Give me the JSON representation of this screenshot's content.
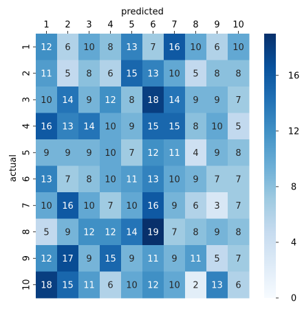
{
  "chart_data": {
    "type": "heatmap",
    "title": "",
    "xlabel": "predicted",
    "ylabel": "actual",
    "x_categories": [
      "1",
      "2",
      "3",
      "4",
      "5",
      "6",
      "7",
      "8",
      "9",
      "10"
    ],
    "y_categories": [
      "1",
      "2",
      "3",
      "4",
      "5",
      "6",
      "7",
      "8",
      "9",
      "10"
    ],
    "values": [
      [
        12,
        6,
        10,
        8,
        13,
        7,
        16,
        10,
        6,
        10
      ],
      [
        11,
        5,
        8,
        6,
        15,
        13,
        10,
        5,
        8,
        8
      ],
      [
        10,
        14,
        9,
        12,
        8,
        18,
        14,
        9,
        9,
        7
      ],
      [
        16,
        13,
        14,
        10,
        9,
        15,
        15,
        8,
        10,
        5
      ],
      [
        9,
        9,
        9,
        10,
        7,
        12,
        11,
        4,
        9,
        8
      ],
      [
        13,
        7,
        8,
        10,
        11,
        13,
        10,
        9,
        7,
        7
      ],
      [
        10,
        16,
        10,
        7,
        10,
        16,
        9,
        6,
        3,
        7
      ],
      [
        5,
        9,
        12,
        12,
        14,
        19,
        7,
        8,
        9,
        8
      ],
      [
        12,
        17,
        9,
        15,
        9,
        11,
        9,
        11,
        5,
        7
      ],
      [
        18,
        15,
        11,
        6,
        10,
        12,
        10,
        2,
        13,
        6
      ]
    ],
    "colormap": "Blues",
    "vmin": 0,
    "vmax": 19,
    "colorbar_ticks": [
      "0",
      "4",
      "8",
      "12",
      "16"
    ],
    "x_axis_position": "top",
    "grid": false
  }
}
